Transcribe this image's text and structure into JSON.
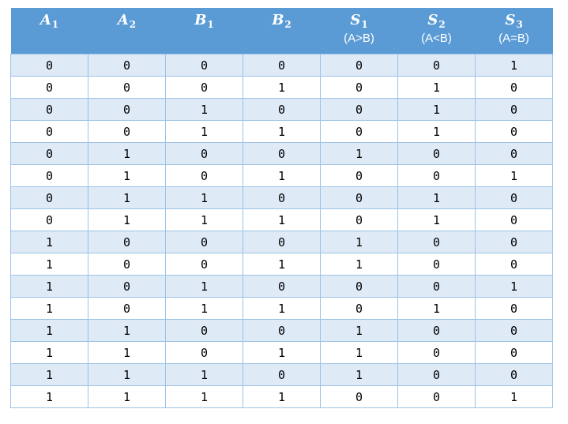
{
  "colors": {
    "header_bg": "#5B9BD5",
    "band_bg": "#DEEAF6",
    "row_bg": "#FFFFFF",
    "border": "#9DC3E6",
    "header_text": "#FFFFFF",
    "cell_text": "#000000"
  },
  "table": {
    "description": "2-bit comparator truth table",
    "columns": [
      {
        "symbol": "A",
        "sub": "1",
        "note": ""
      },
      {
        "symbol": "A",
        "sub": "2",
        "note": ""
      },
      {
        "symbol": "B",
        "sub": "1",
        "note": ""
      },
      {
        "symbol": "B",
        "sub": "2",
        "note": ""
      },
      {
        "symbol": "S",
        "sub": "1",
        "note": "(A>B)"
      },
      {
        "symbol": "S",
        "sub": "2",
        "note": "(A<B)"
      },
      {
        "symbol": "S",
        "sub": "3",
        "note": "(A=B)"
      }
    ],
    "rows": [
      [
        "0",
        "0",
        "0",
        "0",
        "0",
        "0",
        "1"
      ],
      [
        "0",
        "0",
        "0",
        "1",
        "0",
        "1",
        "0"
      ],
      [
        "0",
        "0",
        "1",
        "0",
        "0",
        "1",
        "0"
      ],
      [
        "0",
        "0",
        "1",
        "1",
        "0",
        "1",
        "0"
      ],
      [
        "0",
        "1",
        "0",
        "0",
        "1",
        "0",
        "0"
      ],
      [
        "0",
        "1",
        "0",
        "1",
        "0",
        "0",
        "1"
      ],
      [
        "0",
        "1",
        "1",
        "0",
        "0",
        "1",
        "0"
      ],
      [
        "0",
        "1",
        "1",
        "1",
        "0",
        "1",
        "0"
      ],
      [
        "1",
        "0",
        "0",
        "0",
        "1",
        "0",
        "0"
      ],
      [
        "1",
        "0",
        "0",
        "1",
        "1",
        "0",
        "0"
      ],
      [
        "1",
        "0",
        "1",
        "0",
        "0",
        "0",
        "1"
      ],
      [
        "1",
        "0",
        "1",
        "1",
        "0",
        "1",
        "0"
      ],
      [
        "1",
        "1",
        "0",
        "0",
        "1",
        "0",
        "0"
      ],
      [
        "1",
        "1",
        "0",
        "1",
        "1",
        "0",
        "0"
      ],
      [
        "1",
        "1",
        "1",
        "0",
        "1",
        "0",
        "0"
      ],
      [
        "1",
        "1",
        "1",
        "1",
        "0",
        "0",
        "1"
      ]
    ]
  }
}
